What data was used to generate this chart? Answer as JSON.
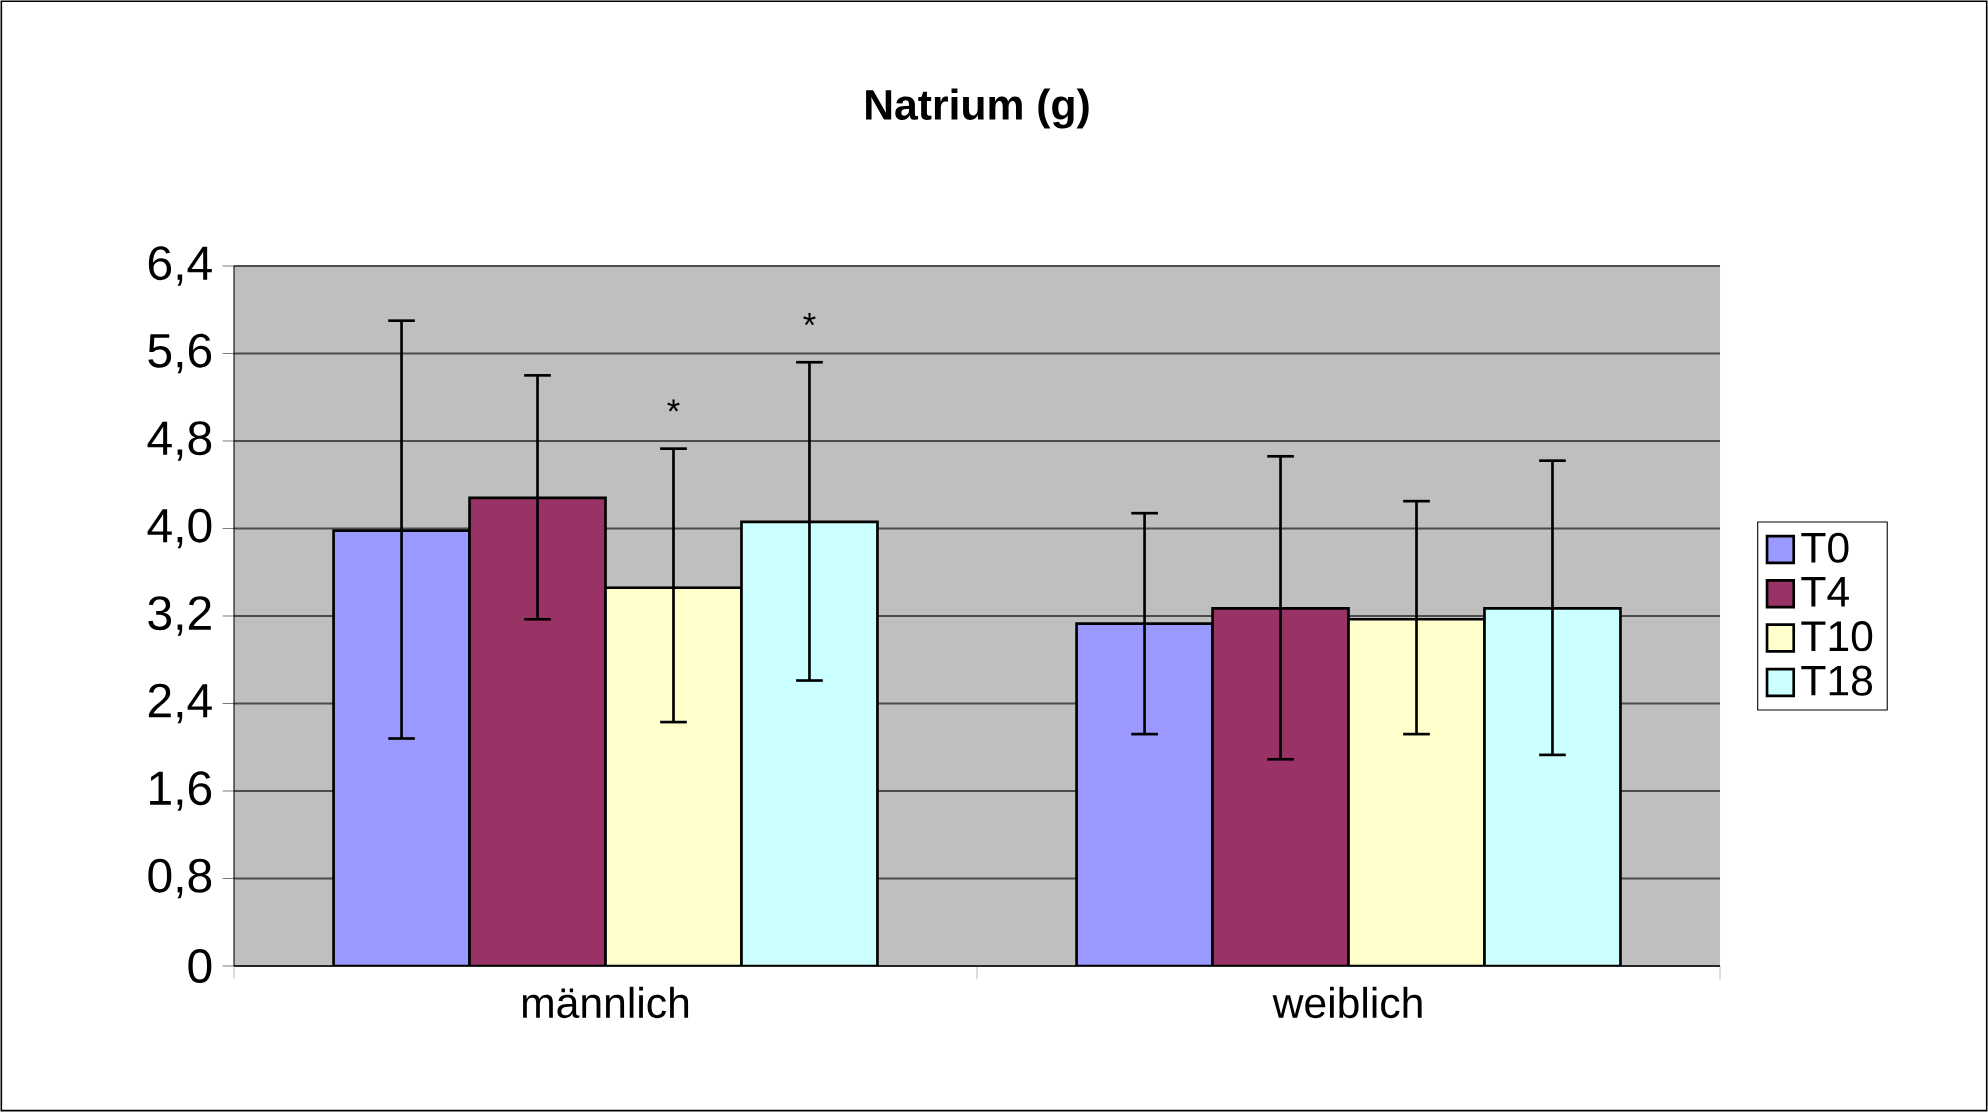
{
  "chart_data": {
    "type": "bar",
    "title": "**Natrium**    **(g)**",
    "categories": [
      "männlich",
      "weiblich"
    ],
    "series": [
      {
        "name": "T0",
        "color": "#9999ff",
        "values": [
          3.98,
          3.13
        ],
        "errors": [
          [
            2.08,
            5.9
          ],
          [
            2.12,
            4.14
          ]
        ]
      },
      {
        "name": "T4",
        "color": "#993366",
        "values": [
          4.28,
          3.27
        ],
        "errors": [
          [
            3.17,
            5.4
          ],
          [
            1.89,
            4.66
          ]
        ]
      },
      {
        "name": "T10",
        "color": "#ffffcc",
        "values": [
          3.46,
          3.17
        ],
        "errors": [
          [
            2.23,
            4.73
          ],
          [
            2.12,
            4.25
          ]
        ]
      },
      {
        "name": "T18",
        "color": "#ccffff",
        "values": [
          4.06,
          3.27
        ],
        "errors": [
          [
            2.61,
            5.52
          ],
          [
            1.93,
            4.62
          ]
        ]
      }
    ],
    "ylim": [
      0,
      6.4
    ],
    "yticks": [
      0,
      {
        "value": 0.8,
        "label": "0,8"
      },
      {
        "value": 1.6,
        "label": "1,6"
      },
      {
        "value": 2.4,
        "label": "2,4"
      },
      {
        "value": 3.2,
        "label": "3,2"
      },
      {
        "value": 4.0,
        "label": "4,0"
      },
      {
        "value": 4.8,
        "label": "4,8"
      },
      {
        "value": 5.6,
        "label": "5,6"
      },
      {
        "value": 6.4,
        "label": "6,4"
      }
    ],
    "grid": "y",
    "legend": "right",
    "annotations": [
      "*",
      "*"
    ]
  }
}
